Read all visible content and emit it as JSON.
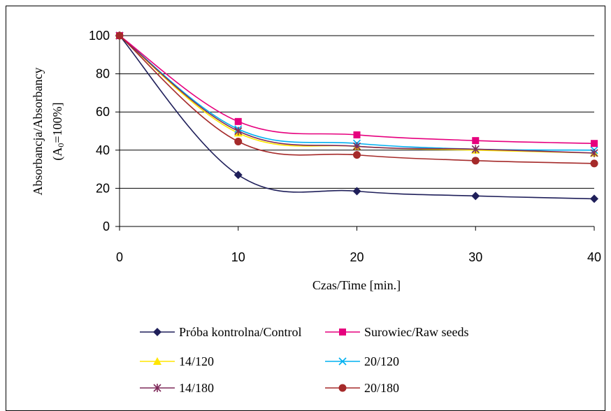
{
  "chart_data": {
    "type": "line",
    "x": [
      0,
      10,
      20,
      30,
      40
    ],
    "xlabel": "Czas/Time [min.]",
    "ylabel_line1": "Absorbancja/Absorbancy",
    "ylabel_line2_pre": "(A",
    "ylabel_line2_sub": "0",
    "ylabel_line2_post": "=100%]",
    "xlim": [
      0,
      40
    ],
    "ylim": [
      0,
      100
    ],
    "xticks": [
      0,
      10,
      20,
      30,
      40
    ],
    "yticks": [
      0,
      20,
      40,
      60,
      80,
      100
    ],
    "grid": "horizontal",
    "legend_position": "bottom",
    "series": [
      {
        "name": "Próba kontrolna/Control",
        "values": [
          100,
          27,
          18.5,
          16,
          14.5
        ],
        "color": "#1f1f5a",
        "marker": "diamond"
      },
      {
        "name": "Surowiec/Raw seeds",
        "values": [
          100,
          55,
          48,
          45,
          43.5
        ],
        "color": "#e6007e",
        "marker": "square"
      },
      {
        "name": "14/120",
        "values": [
          100,
          49,
          42,
          40,
          38.5
        ],
        "color": "#ffe600",
        "marker": "triangle"
      },
      {
        "name": "20/120",
        "values": [
          100,
          51,
          43.5,
          40.5,
          40
        ],
        "color": "#00b0f0",
        "marker": "x"
      },
      {
        "name": "14/180",
        "values": [
          100,
          50,
          42,
          40.5,
          38.5
        ],
        "color": "#7f2a5a",
        "marker": "star"
      },
      {
        "name": "20/180",
        "values": [
          100,
          44.5,
          37.5,
          34.5,
          33
        ],
        "color": "#a52a2a",
        "marker": "circle"
      }
    ]
  }
}
